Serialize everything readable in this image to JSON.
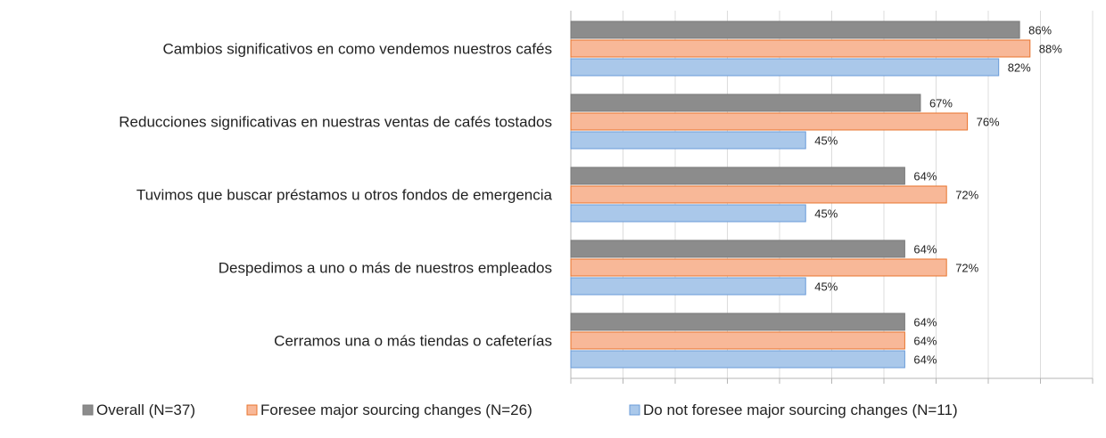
{
  "chart_data": {
    "type": "bar",
    "orientation": "horizontal",
    "categories": [
      "Cambios significativos en como vendemos nuestros cafés",
      "Reducciones significativas en nuestras ventas de cafés tostados",
      "Tuvimos que buscar préstamos u otros fondos de emergencia",
      "Despedimos a uno o más de nuestros empleados",
      "Cerramos una o más tiendas o cafeterías"
    ],
    "series": [
      {
        "name": "Overall (N=37)",
        "values": [
          86,
          67,
          64,
          64,
          64
        ],
        "labels": [
          "86%",
          "67%",
          "64%",
          "64%",
          "64%"
        ],
        "color": "#8c8c8c"
      },
      {
        "name": "Foresee major sourcing changes (N=26)",
        "values": [
          88,
          76,
          72,
          72,
          64
        ],
        "labels": [
          "88%",
          "76%",
          "72%",
          "72%",
          "64%"
        ],
        "color": "#f8b898"
      },
      {
        "name": "Do not foresee major sourcing changes (N=11)",
        "values": [
          82,
          45,
          45,
          45,
          64
        ],
        "labels": [
          "82%",
          "45%",
          "45%",
          "45%",
          "64%"
        ],
        "color": "#aac8ea"
      }
    ],
    "xlim": [
      0,
      100
    ],
    "xticks_labeled": false,
    "grid": true,
    "legend_position": "bottom",
    "title": "",
    "xlabel": "",
    "ylabel": ""
  }
}
